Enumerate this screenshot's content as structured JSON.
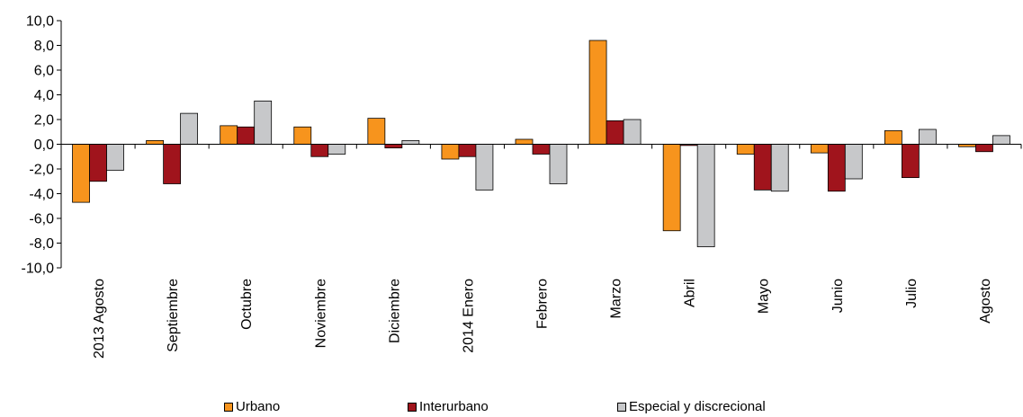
{
  "chart_data": {
    "type": "bar",
    "title": "",
    "xlabel": "",
    "ylabel": "",
    "ylim": [
      -10,
      10
    ],
    "yticks": [
      "10,0",
      "8,0",
      "6,0",
      "4,0",
      "2,0",
      "0,0",
      "-2,0",
      "-4,0",
      "-6,0",
      "-8,0",
      "-10,0"
    ],
    "categories": [
      "2013 Agosto",
      "Septiembre",
      "Octubre",
      "Noviembre",
      "Diciembre",
      "2014 Enero",
      "Febrero",
      "Marzo",
      "Abril",
      "Mayo",
      "Junio",
      "Julio",
      "Agosto"
    ],
    "series": [
      {
        "name": "Urbano",
        "color": "#F7941D",
        "values": [
          -4.7,
          0.3,
          1.5,
          1.4,
          2.1,
          -1.2,
          0.4,
          8.4,
          -7.0,
          -0.8,
          -0.7,
          1.1,
          -0.2
        ]
      },
      {
        "name": "Interurbano",
        "color": "#A0141C",
        "values": [
          -3.0,
          -3.2,
          1.4,
          -1.0,
          -0.3,
          -1.0,
          -0.8,
          1.9,
          -0.1,
          -3.7,
          -3.8,
          -2.7,
          -0.6
        ]
      },
      {
        "name": "Especial y discrecional",
        "color": "#C7C8CA",
        "values": [
          -2.1,
          2.5,
          3.5,
          -0.8,
          0.3,
          -3.7,
          -3.2,
          2.0,
          -8.3,
          -3.8,
          -2.8,
          1.2,
          0.7
        ]
      }
    ],
    "legend_position": "bottom",
    "grid": false
  }
}
